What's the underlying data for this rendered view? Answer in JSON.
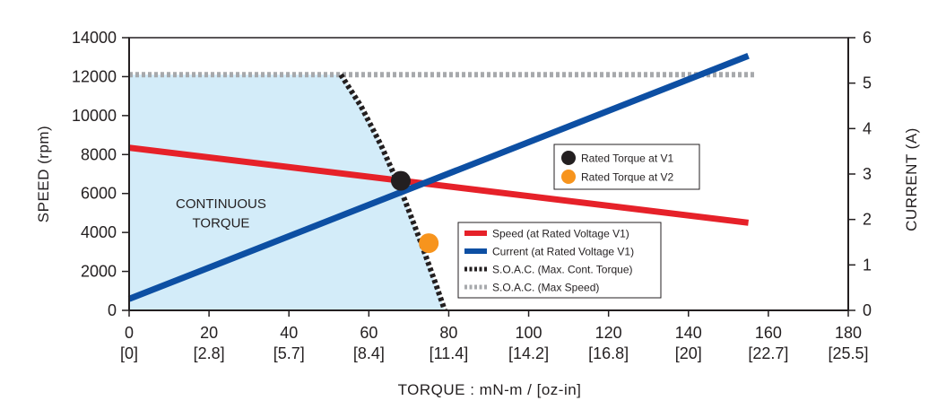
{
  "chart_data": {
    "type": "line",
    "title": "",
    "xlabel": "TORQUE : mN-m / [oz-in]",
    "ylabel_left": "SPEED (rpm)",
    "ylabel_right": "CURRENT (A)",
    "xlim": [
      0,
      180
    ],
    "ylim_left": [
      0,
      14000
    ],
    "ylim_right": [
      0,
      6
    ],
    "x_ticks": [
      0,
      20,
      40,
      60,
      80,
      100,
      120,
      140,
      160,
      180
    ],
    "x_tick_labels": [
      "0",
      "20",
      "40",
      "60",
      "80",
      "100",
      "120",
      "140",
      "160",
      "180"
    ],
    "x_tick_labels_secondary": [
      "[0]",
      "[2.8]",
      "[5.7]",
      "[8.4]",
      "[11.4]",
      "[14.2]",
      "[16.8]",
      "[20]",
      "[22.7]",
      "[25.5]"
    ],
    "y_left_ticks": [
      0,
      2000,
      4000,
      6000,
      8000,
      10000,
      12000,
      14000
    ],
    "y_left_tick_labels": [
      "0",
      "2000",
      "4000",
      "6000",
      "8000",
      "10000",
      "12000",
      "14000"
    ],
    "y_right_ticks": [
      0,
      1,
      2,
      3,
      4,
      5,
      6
    ],
    "y_right_tick_labels": [
      "0",
      "1",
      "2",
      "3",
      "4",
      "5",
      "6"
    ],
    "grid": false,
    "legend_placement": "bottom-right",
    "region": {
      "label_lines": [
        "CONTINUOUS",
        "TORQUE"
      ],
      "color": "#d3ecf9"
    },
    "series": [
      {
        "name": "Speed (at Rated Voltage V1)",
        "axis": "left",
        "style": "solid",
        "color": "#e62129",
        "x": [
          0,
          155
        ],
        "y": [
          8350,
          4500
        ]
      },
      {
        "name": "Current (at Rated Voltage V1)",
        "axis": "right",
        "style": "solid",
        "color": "#0d4fa3",
        "x": [
          0,
          155
        ],
        "y": [
          0.25,
          5.6
        ]
      },
      {
        "name": "S.O.A.C. (Max. Cont. Torque)",
        "axis": "left",
        "style": "dotted",
        "color": "#231f20",
        "x": [
          53,
          58,
          63,
          68,
          73,
          77,
          79
        ],
        "y": [
          12100,
          10500,
          8500,
          6200,
          3500,
          1200,
          0
        ]
      },
      {
        "name": "S.O.A.C. (Max Speed)",
        "axis": "left",
        "style": "dotted",
        "color": "#a7a9ac",
        "x": [
          0,
          157
        ],
        "y": [
          12100,
          12100
        ]
      }
    ],
    "points": [
      {
        "name": "Rated Torque at V1",
        "color": "#231f20",
        "x": 68,
        "y": 6650
      },
      {
        "name": "Rated Torque at V2",
        "color": "#f7941d",
        "x": 75,
        "y": 3450
      }
    ]
  }
}
